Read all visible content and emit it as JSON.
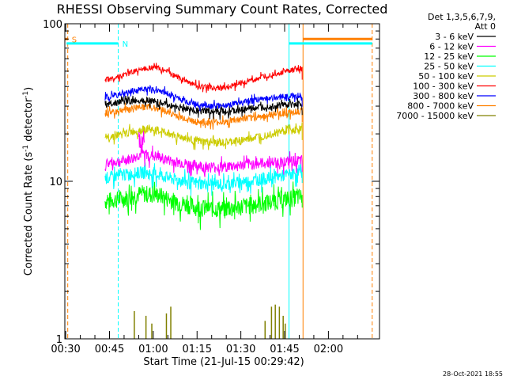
{
  "chart_data": {
    "type": "line",
    "title": "RHESSI Observing Summary Count Rates, Corrected",
    "xlabel": "Start Time (21-Jul-15 00:29:42)",
    "ylabel_parts": [
      "Corrected Count Rate (s",
      "-1",
      " detector",
      "-1",
      ")"
    ],
    "y_scale": "log",
    "ylim": [
      1,
      100
    ],
    "y_ticks": [
      {
        "value": 1,
        "label": "1"
      },
      {
        "value": 10,
        "label": "10"
      },
      {
        "value": 100,
        "label": "100"
      }
    ],
    "xlim_min": [
      29.7,
      137.5
    ],
    "x_ticks": [
      {
        "value": 30,
        "label": "00:30"
      },
      {
        "value": 45,
        "label": "00:45"
      },
      {
        "value": 60,
        "label": "01:00"
      },
      {
        "value": 75,
        "label": "01:15"
      },
      {
        "value": 90,
        "label": "01:30"
      },
      {
        "value": 105,
        "label": "01:45"
      },
      {
        "value": 120,
        "label": "02:00"
      }
    ],
    "legend_header": [
      "Det 1,3,5,6,7,9,",
      "Att 0"
    ],
    "legend_position": "right, outside plot",
    "footer": "28-Oct-2021 18:55",
    "data_window_min": [
      43.5,
      111
    ],
    "series": [
      {
        "name": "3 - 6 keV",
        "color": "#000000",
        "points": [
          [
            43.5,
            31
          ],
          [
            50,
            32
          ],
          [
            58,
            33
          ],
          [
            64,
            31
          ],
          [
            70,
            29
          ],
          [
            76,
            28
          ],
          [
            82,
            27.5
          ],
          [
            88,
            28
          ],
          [
            94,
            29
          ],
          [
            100,
            30
          ],
          [
            106,
            30.5
          ],
          [
            111,
            31
          ]
        ],
        "noise": 0.05
      },
      {
        "name": "6 - 12 keV",
        "color": "#ff00ff",
        "points": [
          [
            43.5,
            13
          ],
          [
            50,
            13.5
          ],
          [
            53,
            14
          ],
          [
            56,
            15
          ],
          [
            60,
            14.5
          ],
          [
            66,
            13.5
          ],
          [
            72,
            12.8
          ],
          [
            80,
            12.3
          ],
          [
            88,
            12.5
          ],
          [
            96,
            13
          ],
          [
            104,
            13.3
          ],
          [
            111,
            13.5
          ]
        ],
        "noise": 0.08
      },
      {
        "name": "12 - 25 keV",
        "color": "#00ff00",
        "points": [
          [
            43.5,
            7.5
          ],
          [
            50,
            7.8
          ],
          [
            56,
            8.4
          ],
          [
            62,
            8.2
          ],
          [
            68,
            7.4
          ],
          [
            76,
            6.8
          ],
          [
            84,
            6.7
          ],
          [
            92,
            7.0
          ],
          [
            100,
            7.4
          ],
          [
            106,
            7.8
          ],
          [
            111,
            8.0
          ]
        ],
        "noise": 0.13
      },
      {
        "name": "25 - 50 keV",
        "color": "#00ffff",
        "points": [
          [
            43.5,
            10.5
          ],
          [
            50,
            11
          ],
          [
            56,
            11.4
          ],
          [
            62,
            11.0
          ],
          [
            68,
            10.2
          ],
          [
            76,
            9.7
          ],
          [
            84,
            9.6
          ],
          [
            92,
            10.0
          ],
          [
            100,
            10.5
          ],
          [
            106,
            11
          ],
          [
            111,
            11.5
          ]
        ],
        "noise": 0.09
      },
      {
        "name": "50 - 100 keV",
        "color": "#cccc00",
        "points": [
          [
            43.5,
            19
          ],
          [
            50,
            20
          ],
          [
            54,
            21
          ],
          [
            58,
            21.5
          ],
          [
            64,
            20.5
          ],
          [
            70,
            19
          ],
          [
            76,
            17.8
          ],
          [
            84,
            17.5
          ],
          [
            92,
            18.5
          ],
          [
            100,
            20
          ],
          [
            106,
            21
          ],
          [
            111,
            21.5
          ]
        ],
        "noise": 0.06
      },
      {
        "name": "100 - 300 keV",
        "color": "#ff0000",
        "points": [
          [
            43.5,
            44
          ],
          [
            50,
            47
          ],
          [
            56,
            52
          ],
          [
            62,
            53
          ],
          [
            68,
            46
          ],
          [
            74,
            41
          ],
          [
            80,
            39
          ],
          [
            86,
            40
          ],
          [
            92,
            43
          ],
          [
            98,
            46
          ],
          [
            104,
            49
          ],
          [
            111,
            52
          ]
        ],
        "noise": 0.04
      },
      {
        "name": "300 - 800 keV",
        "color": "#0000ff",
        "points": [
          [
            43.5,
            34
          ],
          [
            50,
            36
          ],
          [
            56,
            38.5
          ],
          [
            62,
            38
          ],
          [
            68,
            34
          ],
          [
            74,
            31
          ],
          [
            80,
            30
          ],
          [
            86,
            30.5
          ],
          [
            92,
            32
          ],
          [
            98,
            33.5
          ],
          [
            104,
            34.5
          ],
          [
            111,
            35
          ]
        ],
        "noise": 0.045
      },
      {
        "name": "800 - 7000 keV",
        "color": "#ff8000",
        "points": [
          [
            43.5,
            27
          ],
          [
            50,
            28.5
          ],
          [
            56,
            30
          ],
          [
            62,
            29
          ],
          [
            68,
            26
          ],
          [
            74,
            24
          ],
          [
            80,
            23.5
          ],
          [
            86,
            24
          ],
          [
            92,
            25
          ],
          [
            98,
            26
          ],
          [
            104,
            27
          ],
          [
            111,
            28
          ]
        ],
        "noise": 0.05
      },
      {
        "name": "7000 - 15000 keV",
        "color": "#808000",
        "points": [],
        "spikes": [
          [
            53.5,
            1.5
          ],
          [
            57.5,
            1.4
          ],
          [
            59.5,
            1.25
          ],
          [
            64.5,
            1.45
          ],
          [
            66.0,
            1.6
          ],
          [
            98.3,
            1.3
          ],
          [
            100.5,
            1.6
          ],
          [
            101.8,
            1.65
          ],
          [
            103.2,
            1.6
          ],
          [
            104.5,
            1.4
          ],
          [
            105.2,
            1.25
          ]
        ]
      }
    ],
    "annotations": {
      "top_bars": [
        {
          "label": "S",
          "color": "#ff8000",
          "x_from": 29.7,
          "x_to": 30.7,
          "y": 80
        },
        {
          "label": "N",
          "color": "#00ffff",
          "x_from": 30.3,
          "x_to": 48,
          "y": 75
        },
        {
          "label": "",
          "color": "#00ffff",
          "x_from": 106.5,
          "x_to": 135,
          "y": 75
        },
        {
          "label": "",
          "color": "#ff8000",
          "x_from": 111.3,
          "x_to": 135,
          "y": 80
        }
      ],
      "vertical_lines": [
        {
          "x": 30.7,
          "color": "#ff8000",
          "style": "dashed"
        },
        {
          "x": 48,
          "color": "#00ffff",
          "style": "dashed"
        },
        {
          "x": 106.5,
          "color": "#00ffff",
          "style": "solid"
        },
        {
          "x": 111.3,
          "color": "#ff8000",
          "style": "solid"
        },
        {
          "x": 135,
          "color": "#ff8000",
          "style": "dashed"
        }
      ]
    }
  }
}
